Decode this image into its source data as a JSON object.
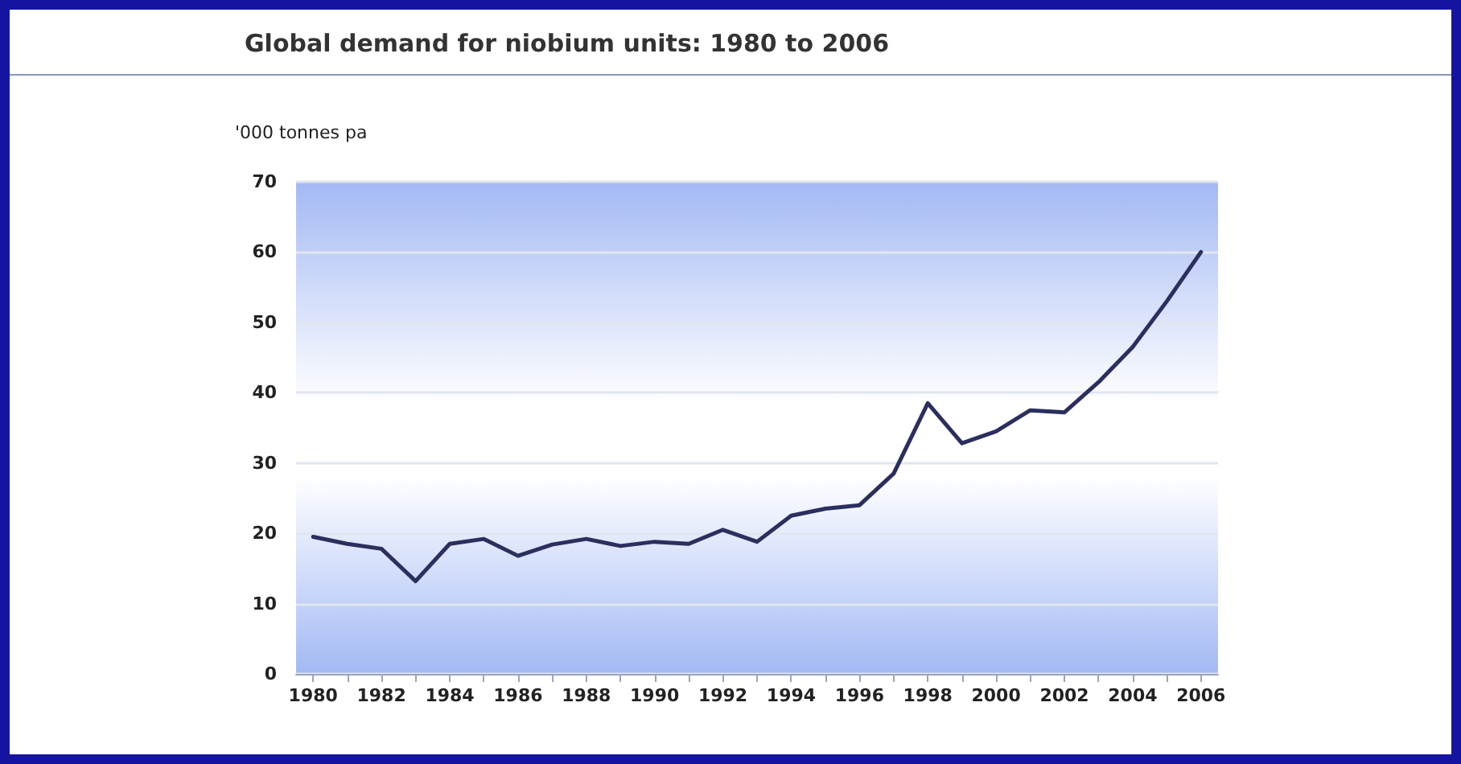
{
  "chart_data": {
    "type": "line",
    "title": "Global demand for niobium units: 1980 to 2006",
    "ylabel": "'000 tonnes pa",
    "categories": [
      "1980",
      null,
      "1982",
      null,
      "1984",
      null,
      "1986",
      null,
      "1988",
      null,
      "1990",
      null,
      "1992",
      null,
      "1994",
      null,
      "1996",
      null,
      "1998",
      null,
      "2000",
      null,
      "2002",
      null,
      "2004",
      null,
      "2006"
    ],
    "series": [
      {
        "color": "#2b2f5e",
        "values": [
          19.5,
          18.5,
          17.8,
          13.2,
          18.5,
          19.2,
          16.8,
          18.4,
          19.2,
          18.2,
          18.8,
          18.5,
          20.5,
          18.8,
          22.5,
          23.5,
          24.0,
          28.5,
          38.5,
          32.8,
          34.5,
          37.5,
          37.2,
          41.5,
          46.5,
          53,
          60
        ]
      }
    ],
    "ylim": [
      0,
      70
    ],
    "yticks": [
      0,
      10,
      20,
      30,
      40,
      50,
      60,
      70
    ],
    "grid": "y",
    "marker": "none",
    "line_style": "solid"
  }
}
